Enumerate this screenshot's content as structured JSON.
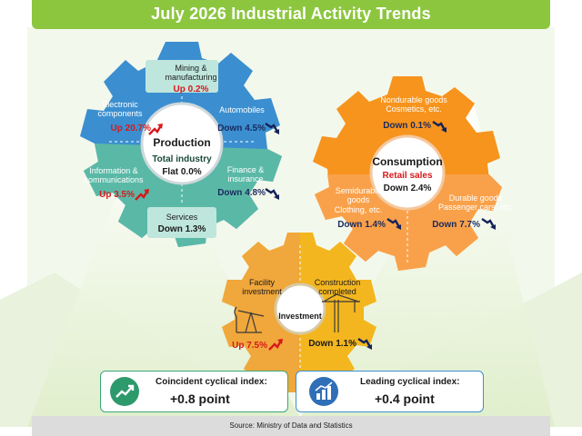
{
  "title": "July 2026 Industrial Activity Trends",
  "colors": {
    "title_green": "#8cc63f",
    "production_blue": "#3b8fd0",
    "production_teal": "#5ab9a6",
    "consumption_orange": "#f7941d",
    "investment_yellow": "#f3b61f",
    "up_red": "#d7191c",
    "down_navy": "#15235a"
  },
  "production": {
    "hub_title": "Production",
    "hub_sub": "Total industry",
    "hub_value": "Flat 0.0%",
    "mining": {
      "label_1": "Mining &",
      "label_2": "manufacturing",
      "value": "Up 0.2%"
    },
    "electronic": {
      "label_1": "Electronic",
      "label_2": "components",
      "value": "Up 20.7%"
    },
    "automobiles": {
      "label": "Automobiles",
      "value": "Down 4.5%"
    },
    "information": {
      "label_1": "Information &",
      "label_2": "communications",
      "value": "Up 3.5%"
    },
    "finance": {
      "label_1": "Finance &",
      "label_2": "insurance",
      "value": "Down 4.8%"
    },
    "services": {
      "label": "Services",
      "value": "Down 1.3%"
    }
  },
  "consumption": {
    "hub_title": "Consumption",
    "hub_sub": "Retail sales",
    "hub_value": "Down 2.4%",
    "nondurable": {
      "label_1": "Nondurable goods",
      "label_2": "Cosmetics, etc.",
      "value": "Down 0.1%"
    },
    "semidurable": {
      "label_1": "Semidurable",
      "label_2": "goods",
      "label_3": "Clothing, etc.",
      "value": "Down 1.4%"
    },
    "durable": {
      "label_1": "Durable goods",
      "label_2": "Passenger cars, etc.",
      "value": "Down 7.7%"
    }
  },
  "investment": {
    "hub_title": "Investment",
    "facility": {
      "label_1": "Facility",
      "label_2": "investment",
      "value": "Up 7.5%"
    },
    "construction": {
      "label_1": "Construction",
      "label_2": "completed",
      "value": "Down 1.1%"
    }
  },
  "indices": {
    "coincident": {
      "title": "Coincident cyclical index:",
      "value": "+0.8 point",
      "icon": "line-chart-up-icon"
    },
    "leading": {
      "title": "Leading cyclical index:",
      "value": "+0.4 point",
      "icon": "bar-chart-up-icon"
    }
  },
  "source": "Source: Ministry of Data and Statistics"
}
